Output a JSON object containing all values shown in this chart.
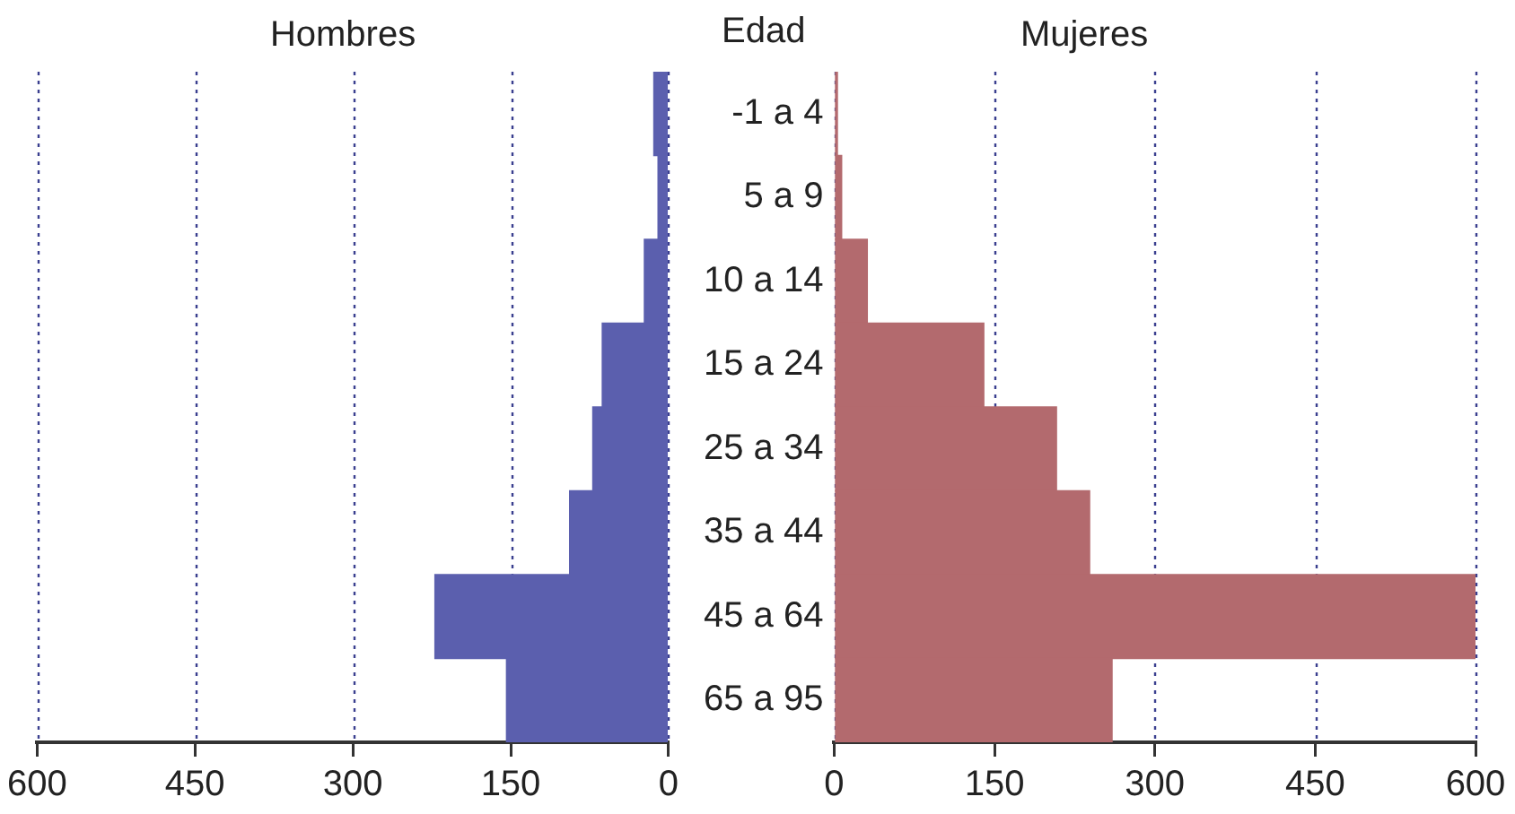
{
  "chart_data": [
    {
      "type": "bar",
      "orientation": "horizontal",
      "title": "Hombres",
      "categories": [
        null,
        null,
        null,
        null,
        null,
        null,
        null,
        null
      ],
      "series": [
        {
          "color": "#5b5fae",
          "values": [
            14,
            10,
            23,
            63,
            72,
            94,
            222,
            154
          ]
        }
      ],
      "xlim": [
        600,
        0
      ],
      "xticks": [
        600,
        450,
        300,
        150,
        0
      ],
      "grid": "x",
      "line_style": "dotted"
    },
    {
      "type": "bar",
      "orientation": "horizontal",
      "title": "Mujeres",
      "ylabel": "Edad",
      "categories": [
        "-1 a 4",
        "5 a 9",
        "10 a 14",
        "15 a 24",
        "25 a 34",
        "35 a 44",
        "45 a 64",
        "65 a 95"
      ],
      "series": [
        {
          "color": "#b36a6e",
          "values": [
            3,
            7,
            31,
            140,
            208,
            239,
            600,
            260
          ]
        }
      ],
      "xlim": [
        0,
        600
      ],
      "xticks": [
        0,
        150,
        300,
        450,
        600
      ],
      "grid": "x",
      "line_style": "dotted"
    }
  ]
}
